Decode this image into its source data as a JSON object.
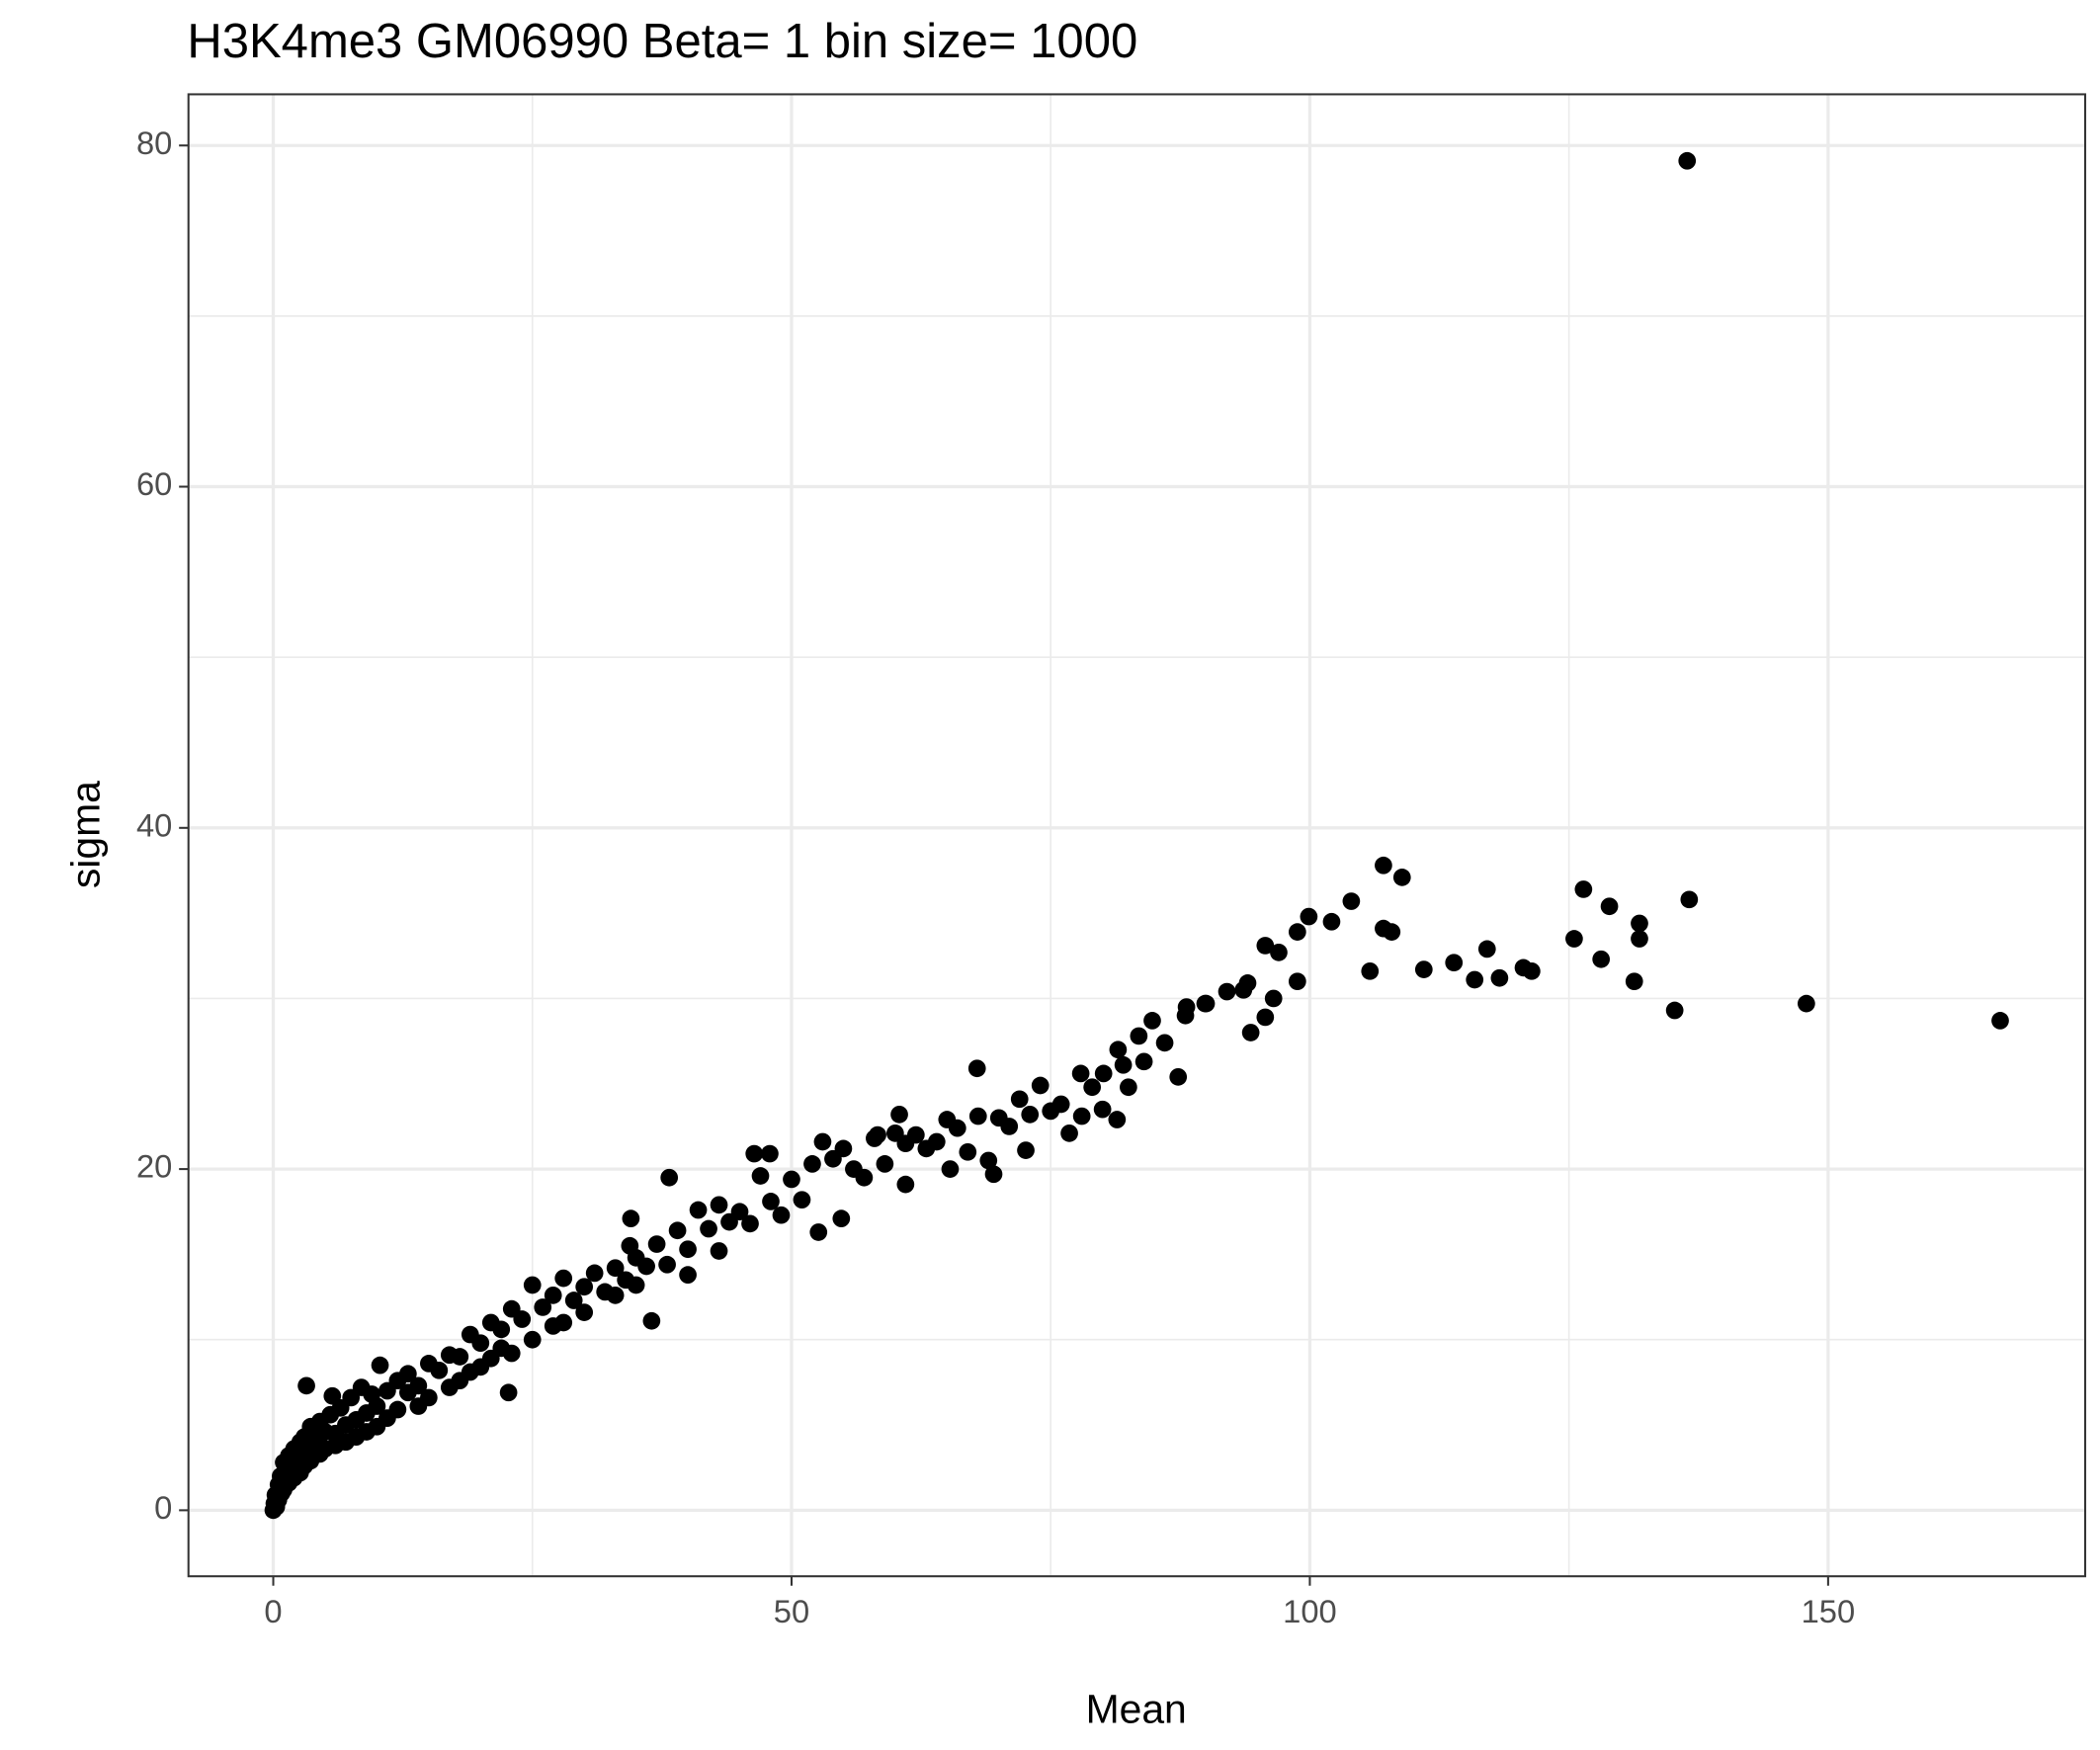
{
  "chart_data": {
    "type": "scatter",
    "title": "H3K4me3 GM06990  Beta=  1  bin size=  1000",
    "x_label": "Mean",
    "y_label": "sigma",
    "color": "#000000",
    "grid": true,
    "xlim": [
      -8.18,
      174.8
    ],
    "ylim": [
      -3.87,
      83.0
    ],
    "xticks": [
      0,
      50,
      100,
      150
    ],
    "yticks": [
      0,
      20,
      40,
      60,
      80
    ],
    "x": [
      0,
      0.1,
      0.2,
      0.3,
      0.5,
      0.5,
      0.7,
      0.8,
      1,
      1,
      1.2,
      1.5,
      1.5,
      1.8,
      2,
      2,
      2.3,
      2.6,
      2.6,
      3,
      3,
      3.3,
      3.6,
      3.6,
      4,
      4.5,
      4.5,
      5,
      5,
      5.5,
      6,
      6,
      6.5,
      7,
      7,
      7.5,
      8,
      8,
      8.5,
      9,
      9,
      9.5,
      10,
      10,
      11,
      11,
      12,
      12,
      13,
      13,
      14,
      14,
      15,
      15,
      16,
      17,
      17,
      18,
      18,
      19,
      19,
      20,
      20,
      21,
      21,
      22,
      22,
      23,
      23,
      24,
      25,
      25,
      26,
      27,
      27,
      28,
      28,
      29,
      30,
      30,
      31,
      32,
      33,
      33,
      34,
      35,
      35,
      36,
      37,
      38,
      39,
      40,
      40,
      41,
      42,
      43,
      43,
      44,
      45,
      46,
      47,
      48,
      49,
      50,
      51,
      52,
      53,
      54,
      55,
      56,
      57,
      58,
      59,
      60,
      61,
      62,
      63,
      64,
      65,
      66,
      67,
      68,
      69,
      70,
      71,
      72,
      73,
      75,
      76,
      78,
      79,
      80,
      82,
      84,
      86,
      88,
      90,
      92,
      94,
      136.4,
      166.6,
      147.9,
      136.6,
      135.2,
      126.4,
      128.9,
      131.8,
      131.8,
      131.3,
      128.1,
      125.5,
      121.4,
      120.6,
      118.3,
      117.1,
      115.9,
      113.9,
      111.0,
      107.1,
      108.9,
      107.1,
      107.9,
      105.8,
      104.0,
      102.1,
      99.9,
      98.8,
      98.8,
      97.0,
      95.7,
      94.3,
      95.7,
      96.5,
      93.6,
      89.9,
      88.1,
      84.8,
      83.5,
      81.5,
      87.3,
      82.5,
      80.1,
      77.9,
      74.0,
      67.9,
      81.4,
      76.8,
      72.6,
      69.5,
      65.3,
      61.0,
      60.4,
      58.3,
      52.6,
      54.8,
      46.4,
      47.9,
      38.2,
      34.5,
      34.4,
      36.5,
      22.7,
      3.2,
      10.3,
      5.7
    ],
    "values": [
      0,
      0.4,
      0.9,
      0.2,
      1.5,
      0.6,
      2.0,
      1.0,
      2.8,
      1.2,
      1.8,
      3.2,
      1.6,
      2.4,
      3.6,
      1.9,
      2.8,
      4.0,
      2.2,
      4.3,
      2.6,
      3.4,
      4.9,
      2.9,
      4.2,
      5.2,
      3.3,
      4.6,
      3.6,
      5.6,
      4.5,
      3.8,
      6.0,
      5.0,
      4.0,
      6.6,
      5.3,
      4.3,
      7.2,
      5.7,
      4.6,
      6.8,
      6.1,
      4.9,
      7.0,
      5.4,
      7.6,
      5.9,
      6.9,
      8.0,
      7.3,
      6.1,
      8.6,
      6.6,
      8.2,
      9.1,
      7.2,
      9.0,
      7.6,
      10.3,
      8.1,
      9.8,
      8.4,
      11.0,
      8.9,
      10.6,
      9.5,
      11.8,
      9.2,
      11.2,
      13.2,
      10.0,
      11.9,
      12.6,
      10.8,
      13.6,
      11.0,
      12.3,
      13.1,
      11.6,
      13.9,
      12.8,
      14.2,
      12.6,
      13.5,
      14.8,
      13.2,
      14.3,
      15.6,
      14.4,
      16.4,
      15.3,
      13.8,
      17.6,
      16.5,
      17.9,
      15.2,
      16.9,
      17.5,
      16.8,
      19.6,
      18.1,
      17.3,
      19.4,
      18.2,
      20.3,
      21.6,
      20.6,
      21.2,
      20.0,
      19.5,
      21.8,
      20.3,
      22.1,
      21.5,
      22.0,
      21.2,
      21.6,
      22.9,
      22.4,
      21.0,
      23.1,
      20.5,
      23.0,
      22.5,
      24.1,
      23.2,
      23.4,
      23.8,
      23.1,
      24.8,
      23.5,
      26.1,
      26.3,
      27.4,
      29.0,
      29.7,
      30.4,
      30.9,
      79.1,
      28.7,
      29.7,
      35.8,
      29.3,
      36.4,
      35.4,
      34.4,
      33.5,
      31.0,
      32.3,
      33.5,
      31.6,
      31.8,
      31.2,
      32.9,
      31.1,
      32.1,
      31.7,
      37.8,
      37.1,
      34.1,
      33.9,
      31.6,
      35.7,
      34.5,
      34.8,
      33.9,
      31.0,
      32.7,
      33.1,
      28.0,
      28.9,
      30.0,
      30.5,
      29.7,
      29.5,
      28.7,
      27.8,
      27.0,
      25.4,
      24.8,
      25.6,
      25.6,
      24.9,
      25.9,
      22.9,
      22.1,
      21.1,
      19.7,
      20.0,
      19.1,
      23.2,
      22.0,
      16.3,
      17.1,
      20.9,
      20.9,
      19.5,
      17.1,
      15.5,
      11.1,
      6.9,
      7.3,
      8.5,
      6.7
    ]
  }
}
